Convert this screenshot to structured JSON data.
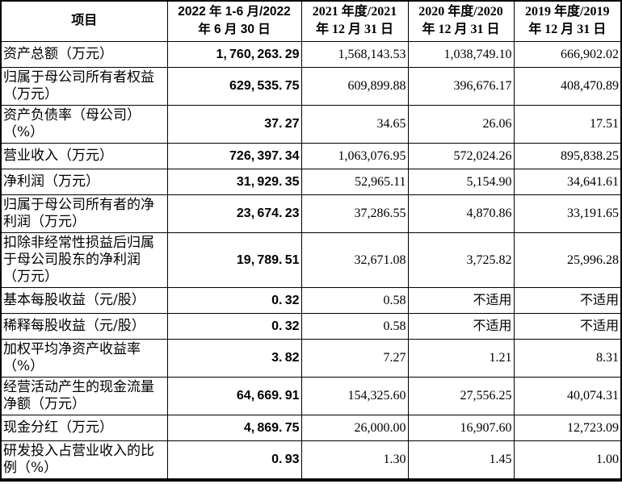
{
  "table": {
    "columns": [
      {
        "header_line1": "项目",
        "header_line2": ""
      },
      {
        "header_line1": "2022 年 1-6 月/2022",
        "header_line2": "年 6 月 30 日"
      },
      {
        "header_line1": "2021 年度/2021",
        "header_line2": "年 12 月 31 日"
      },
      {
        "header_line1": "2020 年度/2020",
        "header_line2": "年 12 月 31 日"
      },
      {
        "header_line1": "2019 年度/2019",
        "header_line2": "年 12 月 31 日"
      }
    ],
    "rows": [
      {
        "label": "资产总额（万元）",
        "values": [
          "1,760,263.29",
          "1,568,143.53",
          "1,038,749.10",
          "666,902.02"
        ]
      },
      {
        "label": "归属于母公司所有者权益（万元）",
        "values": [
          "629,535.75",
          "609,899.88",
          "396,676.17",
          "408,470.89"
        ]
      },
      {
        "label": "资产负债率（母公司）（%）",
        "values": [
          "37.27",
          "34.65",
          "26.06",
          "17.51"
        ]
      },
      {
        "label": "营业收入（万元）",
        "values": [
          "726,397.34",
          "1,063,076.95",
          "572,024.26",
          "895,838.25"
        ]
      },
      {
        "label": "净利润（万元）",
        "values": [
          "31,929.35",
          "52,965.11",
          "5,154.90",
          "34,641.61"
        ]
      },
      {
        "label": "归属于母公司所有者的净利润（万元）",
        "values": [
          "23,674.23",
          "37,286.55",
          "4,870.86",
          "33,191.65"
        ]
      },
      {
        "label": "扣除非经常性损益后归属于母公司股东的净利润（万元）",
        "values": [
          "19,789.51",
          "32,671.08",
          "3,725.82",
          "25,996.28"
        ]
      },
      {
        "label": "基本每股收益（元/股）",
        "values": [
          "0.32",
          "0.58",
          "不适用",
          "不适用"
        ]
      },
      {
        "label": "稀释每股收益（元/股）",
        "values": [
          "0.32",
          "0.58",
          "不适用",
          "不适用"
        ]
      },
      {
        "label": "加权平均净资产收益率（%）",
        "values": [
          "3.82",
          "7.27",
          "1.21",
          "8.31"
        ]
      },
      {
        "label": "经营活动产生的现金流量净额（万元）",
        "values": [
          "64,669.91",
          "154,325.60",
          "27,556.25",
          "40,074.31"
        ]
      },
      {
        "label": "现金分红（万元）",
        "values": [
          "4,869.75",
          "26,000.00",
          "16,907.60",
          "12,723.09"
        ]
      },
      {
        "label": "研发投入占营业收入的比例（%）",
        "values": [
          "0.93",
          "1.30",
          "1.45",
          "1.00"
        ]
      }
    ]
  },
  "colors": {
    "text": "#000000",
    "border": "#000000",
    "background": "#ffffff"
  }
}
